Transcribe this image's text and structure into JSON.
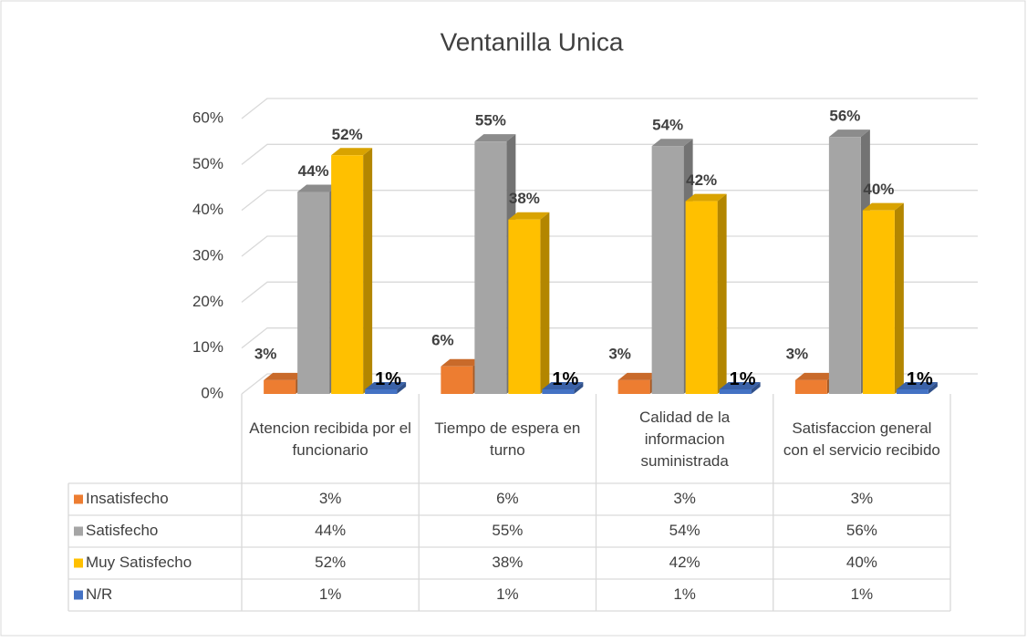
{
  "chart_data": {
    "type": "bar3d",
    "title": "Ventanilla Unica",
    "categories": [
      "Atencion recibida por el funcionario",
      "Tiempo de espera en turno",
      "Calidad de la informacion suministrada",
      "Satisfaccion general con el servicio recibido"
    ],
    "series": [
      {
        "name": "Insatisfecho",
        "color": "#ed7d31",
        "values": [
          3,
          6,
          3,
          3
        ],
        "value_labels": [
          "3%",
          "6%",
          "3%",
          "3%"
        ]
      },
      {
        "name": "Satisfecho",
        "color": "#a5a5a5",
        "values": [
          44,
          55,
          54,
          56
        ],
        "value_labels": [
          "44%",
          "55%",
          "54%",
          "56%"
        ]
      },
      {
        "name": "Muy Satisfecho",
        "color": "#ffc000",
        "values": [
          52,
          38,
          42,
          40
        ],
        "value_labels": [
          "52%",
          "38%",
          "42%",
          "40%"
        ]
      },
      {
        "name": "N/R",
        "color": "#4472c4",
        "values": [
          1,
          1,
          1,
          1
        ],
        "value_labels": [
          "1%",
          "1%",
          "1%",
          "1%"
        ]
      }
    ],
    "ylim": [
      0,
      60
    ],
    "yticks": [
      {
        "value": 0,
        "label": "0%"
      },
      {
        "value": 10,
        "label": "10%"
      },
      {
        "value": 20,
        "label": "20%"
      },
      {
        "value": 30,
        "label": "30%"
      },
      {
        "value": 40,
        "label": "40%"
      },
      {
        "value": 50,
        "label": "50%"
      },
      {
        "value": 60,
        "label": "60%"
      }
    ],
    "grid": true,
    "data_table": true
  }
}
